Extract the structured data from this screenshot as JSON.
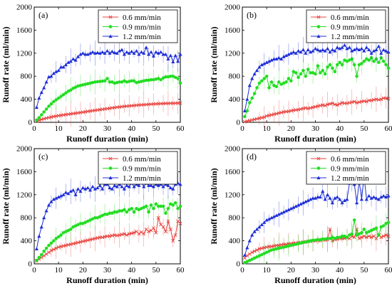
{
  "chart_data": [
    {
      "type": "line",
      "label": "(a)",
      "xlabel": "Runoff duration (min)",
      "ylabel": "Runoff rate (ml/min)",
      "xlim": [
        0,
        60
      ],
      "ylim": [
        0,
        2000
      ],
      "xticks": [
        0,
        10,
        20,
        30,
        40,
        50,
        60
      ],
      "yticks": [
        0,
        400,
        800,
        1200,
        1600,
        2000
      ],
      "legend_position": "top-right",
      "x": [
        1,
        2,
        3,
        4,
        5,
        6,
        7,
        8,
        9,
        10,
        11,
        12,
        13,
        14,
        15,
        16,
        17,
        18,
        19,
        20,
        21,
        22,
        23,
        24,
        25,
        26,
        27,
        28,
        29,
        30,
        31,
        32,
        33,
        34,
        35,
        36,
        37,
        38,
        39,
        40,
        41,
        42,
        43,
        44,
        45,
        46,
        47,
        48,
        49,
        50,
        51,
        52,
        53,
        54,
        55,
        56,
        57,
        58,
        59,
        60
      ],
      "series": [
        {
          "name": "0.6 mm/min",
          "color": "#e8413c",
          "marker": "x",
          "values": [
            20,
            35,
            50,
            62,
            72,
            82,
            92,
            100,
            108,
            115,
            122,
            128,
            134,
            140,
            146,
            152,
            158,
            164,
            170,
            176,
            182,
            190,
            196,
            202,
            208,
            214,
            220,
            226,
            232,
            238,
            244,
            250,
            256,
            262,
            266,
            272,
            276,
            280,
            284,
            288,
            292,
            296,
            300,
            303,
            306,
            309,
            312,
            315,
            318,
            320,
            322,
            324,
            326,
            328,
            329,
            330,
            331,
            332,
            333,
            334
          ]
        },
        {
          "name": "0.9 mm/min",
          "color": "#22dd22",
          "marker": "o",
          "values": [
            40,
            80,
            130,
            180,
            230,
            280,
            320,
            360,
            390,
            420,
            450,
            480,
            510,
            540,
            560,
            590,
            610,
            630,
            640,
            650,
            660,
            670,
            680,
            690,
            700,
            705,
            710,
            715,
            720,
            760,
            700,
            700,
            680,
            690,
            700,
            700,
            720,
            700,
            710,
            720,
            720,
            690,
            700,
            710,
            720,
            730,
            730,
            740,
            740,
            750,
            760,
            740,
            770,
            790,
            790,
            800,
            800,
            780,
            760,
            680
          ]
        },
        {
          "name": "1.2 mm/min",
          "color": "#1f2fd6",
          "marker": "^",
          "values": [
            260,
            420,
            520,
            600,
            700,
            790,
            800,
            850,
            880,
            900,
            960,
            960,
            1000,
            1040,
            1060,
            1100,
            1080,
            1140,
            1180,
            1200,
            1180,
            1180,
            1200,
            1220,
            1200,
            1210,
            1200,
            1220,
            1200,
            1240,
            1200,
            1230,
            1210,
            1200,
            1240,
            1260,
            1180,
            1220,
            1200,
            1230,
            1200,
            1240,
            1180,
            1220,
            1200,
            1300,
            1180,
            1220,
            1150,
            1220,
            1200,
            1220,
            1180,
            1180,
            1100,
            1160,
            1050,
            1160,
            1060,
            1180
          ]
        }
      ]
    },
    {
      "type": "line",
      "label": "(b)",
      "xlabel": "Runoff duration (min)",
      "ylabel": "Runoff rate (ml/min)",
      "xlim": [
        0,
        60
      ],
      "ylim": [
        0,
        2000
      ],
      "xticks": [
        0,
        10,
        20,
        30,
        40,
        50,
        60
      ],
      "yticks": [
        0,
        400,
        800,
        1200,
        1600,
        2000
      ],
      "legend_position": "top-right",
      "x": [
        1,
        2,
        3,
        4,
        5,
        6,
        7,
        8,
        9,
        10,
        11,
        12,
        13,
        14,
        15,
        16,
        17,
        18,
        19,
        20,
        21,
        22,
        23,
        24,
        25,
        26,
        27,
        28,
        29,
        30,
        31,
        32,
        33,
        34,
        35,
        36,
        37,
        38,
        39,
        40,
        41,
        42,
        43,
        44,
        45,
        46,
        47,
        48,
        49,
        50,
        51,
        52,
        53,
        54,
        55,
        56,
        57,
        58,
        59,
        60
      ],
      "series": [
        {
          "name": "0.6 mm/min",
          "color": "#e8413c",
          "marker": "x",
          "values": [
            10,
            20,
            30,
            40,
            50,
            60,
            70,
            80,
            90,
            110,
            120,
            130,
            140,
            150,
            160,
            170,
            180,
            185,
            190,
            200,
            210,
            215,
            220,
            230,
            240,
            250,
            240,
            250,
            260,
            270,
            280,
            290,
            300,
            290,
            310,
            320,
            330,
            310,
            300,
            320,
            340,
            330,
            330,
            340,
            350,
            360,
            340,
            350,
            360,
            370,
            360,
            380,
            380,
            390,
            400,
            390,
            400,
            420,
            420,
            410
          ]
        },
        {
          "name": "0.9 mm/min",
          "color": "#22dd22",
          "marker": "o",
          "values": [
            100,
            200,
            340,
            420,
            500,
            600,
            680,
            720,
            760,
            800,
            600,
            700,
            640,
            620,
            700,
            660,
            680,
            700,
            760,
            720,
            880,
            860,
            780,
            840,
            900,
            800,
            920,
            860,
            860,
            840,
            980,
            860,
            900,
            840,
            960,
            1000,
            940,
            880,
            1000,
            1040,
            1000,
            1080,
            1060,
            1080,
            1100,
            1000,
            800,
            1000,
            1020,
            1060,
            1100,
            1080,
            1120,
            1060,
            1100,
            1040,
            1120,
            1060,
            1000,
            940
          ]
        },
        {
          "name": "1.2 mm/min",
          "color": "#1f2fd6",
          "marker": "^",
          "values": [
            200,
            400,
            640,
            760,
            840,
            900,
            960,
            1000,
            1020,
            1040,
            1060,
            1080,
            1100,
            1100,
            1120,
            1100,
            1140,
            1160,
            1180,
            1200,
            1220,
            1200,
            1240,
            1220,
            1260,
            1200,
            1260,
            1220,
            1240,
            1280,
            1260,
            1240,
            1260,
            1240,
            1280,
            1220,
            1260,
            1240,
            1300,
            1280,
            1300,
            1340,
            1280,
            1300,
            1240,
            1260,
            1280,
            1260,
            1280,
            1240,
            1300,
            1260,
            1200,
            1240,
            1260,
            1320,
            1200,
            1260,
            1240,
            1220
          ]
        }
      ]
    },
    {
      "type": "line",
      "label": "(c)",
      "xlabel": "Runoff duration (min)",
      "ylabel": "Runoff rate (ml/min)",
      "xlim": [
        0,
        60
      ],
      "ylim": [
        0,
        2000
      ],
      "xticks": [
        0,
        10,
        20,
        30,
        40,
        50,
        60
      ],
      "yticks": [
        0,
        400,
        800,
        1200,
        1600,
        2000
      ],
      "legend_position": "top-right",
      "x": [
        1,
        2,
        3,
        4,
        5,
        6,
        7,
        8,
        9,
        10,
        11,
        12,
        13,
        14,
        15,
        16,
        17,
        18,
        19,
        20,
        21,
        22,
        23,
        24,
        25,
        26,
        27,
        28,
        29,
        30,
        31,
        32,
        33,
        34,
        35,
        36,
        37,
        38,
        39,
        40,
        41,
        42,
        43,
        44,
        45,
        46,
        47,
        48,
        49,
        50,
        51,
        52,
        53,
        54,
        55,
        56,
        57,
        58,
        59,
        60
      ],
      "series": [
        {
          "name": "0.6 mm/min",
          "color": "#e8413c",
          "marker": "x",
          "values": [
            50,
            80,
            110,
            140,
            170,
            200,
            230,
            250,
            270,
            290,
            300,
            310,
            320,
            330,
            340,
            350,
            360,
            370,
            380,
            390,
            400,
            410,
            420,
            430,
            440,
            450,
            460,
            460,
            470,
            480,
            480,
            490,
            500,
            490,
            500,
            510,
            520,
            500,
            520,
            530,
            540,
            560,
            520,
            550,
            520,
            600,
            560,
            580,
            620,
            540,
            800,
            680,
            640,
            560,
            740,
            600,
            400,
            500,
            740,
            700
          ]
        },
        {
          "name": "0.9 mm/min",
          "color": "#22dd22",
          "marker": "o",
          "values": [
            60,
            110,
            160,
            220,
            270,
            320,
            360,
            400,
            440,
            470,
            500,
            540,
            560,
            580,
            600,
            640,
            660,
            680,
            700,
            700,
            720,
            740,
            760,
            780,
            800,
            800,
            820,
            840,
            860,
            860,
            880,
            880,
            900,
            900,
            920,
            920,
            940,
            900,
            940,
            960,
            900,
            960,
            940,
            960,
            980,
            1000,
            900,
            1020,
            960,
            1040,
            1000,
            1000,
            1000,
            880,
            960,
            1040,
            1020,
            1060,
            960,
            1000
          ]
        },
        {
          "name": "1.2 mm/min",
          "color": "#1f2fd6",
          "marker": "^",
          "values": [
            260,
            480,
            640,
            800,
            920,
            1020,
            1080,
            1120,
            1140,
            1160,
            1180,
            1200,
            1240,
            1220,
            1260,
            1280,
            1200,
            1300,
            1260,
            1320,
            1300,
            1320,
            1280,
            1340,
            1300,
            1320,
            1360,
            1300,
            1380,
            1380,
            1320,
            1300,
            1360,
            1340,
            1380,
            1340,
            1300,
            1360,
            1340,
            1400,
            1340,
            1380,
            1360,
            1420,
            1340,
            1400,
            1360,
            1360,
            1340,
            1380,
            1360,
            1380,
            1340,
            1380,
            1360,
            1320,
            1300,
            1380,
            1400,
            1380
          ]
        }
      ]
    },
    {
      "type": "line",
      "label": "(d)",
      "xlabel": "Runoff duration (min)",
      "ylabel": "Runoff rate (ml/min)",
      "xlim": [
        0,
        60
      ],
      "ylim": [
        0,
        2000
      ],
      "xticks": [
        0,
        10,
        20,
        30,
        40,
        50,
        60
      ],
      "yticks": [
        0,
        400,
        800,
        1200,
        1600,
        2000
      ],
      "legend_position": "top-right",
      "x": [
        1,
        2,
        3,
        4,
        5,
        6,
        7,
        8,
        9,
        10,
        11,
        12,
        13,
        14,
        15,
        16,
        17,
        18,
        19,
        20,
        21,
        22,
        23,
        24,
        25,
        26,
        27,
        28,
        29,
        30,
        31,
        32,
        33,
        34,
        35,
        36,
        37,
        38,
        39,
        40,
        41,
        42,
        43,
        44,
        45,
        46,
        47,
        48,
        49,
        50,
        51,
        52,
        53,
        54,
        55,
        56,
        57,
        58,
        59,
        60
      ],
      "series": [
        {
          "name": "0.6 mm/min",
          "color": "#e8413c",
          "marker": "x",
          "values": [
            100,
            140,
            170,
            200,
            220,
            240,
            260,
            270,
            280,
            290,
            300,
            300,
            310,
            320,
            320,
            330,
            340,
            340,
            350,
            350,
            360,
            360,
            370,
            370,
            380,
            380,
            390,
            390,
            400,
            400,
            410,
            400,
            420,
            410,
            420,
            600,
            400,
            420,
            430,
            440,
            440,
            440,
            460,
            440,
            480,
            460,
            600,
            440,
            460,
            480,
            460,
            480,
            460,
            480,
            440,
            500,
            460,
            480,
            500,
            480
          ]
        },
        {
          "name": "0.9 mm/min",
          "color": "#22dd22",
          "marker": "o",
          "values": [
            20,
            40,
            60,
            80,
            100,
            120,
            140,
            160,
            180,
            200,
            220,
            240,
            250,
            260,
            270,
            280,
            290,
            300,
            310,
            320,
            330,
            340,
            350,
            360,
            370,
            380,
            390,
            400,
            410,
            410,
            420,
            420,
            430,
            430,
            440,
            440,
            460,
            440,
            460,
            460,
            480,
            480,
            460,
            500,
            520,
            760,
            500,
            520,
            540,
            600,
            540,
            560,
            580,
            600,
            620,
            500,
            640,
            660,
            700,
            720
          ]
        },
        {
          "name": "1.2 mm/min",
          "color": "#1f2fd6",
          "marker": "^",
          "values": [
            150,
            280,
            400,
            500,
            560,
            600,
            640,
            680,
            720,
            760,
            780,
            800,
            820,
            840,
            860,
            880,
            900,
            920,
            940,
            960,
            980,
            1000,
            1020,
            1040,
            1060,
            1080,
            1100,
            1120,
            1140,
            1140,
            1160,
            1160,
            1260,
            1120,
            1200,
            1140,
            1060,
            1140,
            1160,
            1120,
            1060,
            1100,
            1120,
            1400,
            1480,
            1380,
            1060,
            1440,
            1120,
            1520,
            1120,
            1180,
            1140,
            1160,
            1140,
            1120,
            1160,
            1180,
            1160,
            1180
          ]
        }
      ]
    }
  ]
}
